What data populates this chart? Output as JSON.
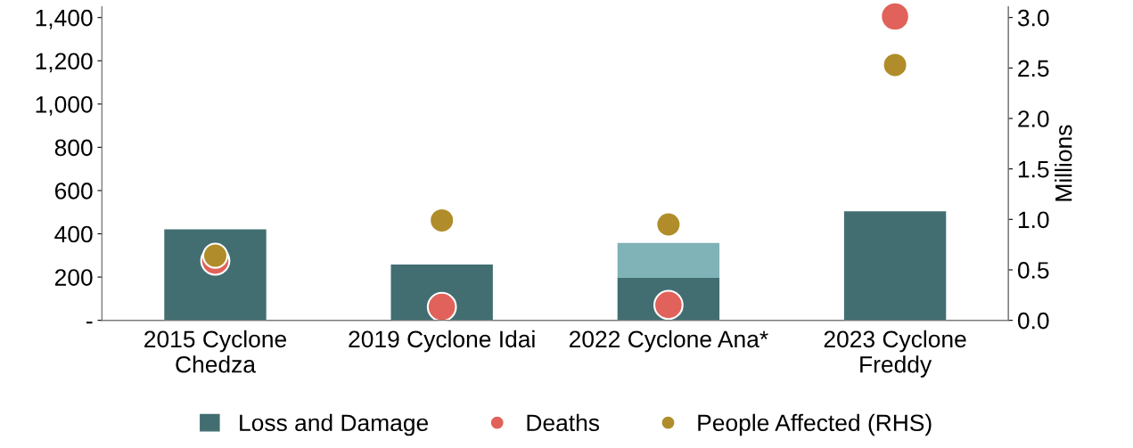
{
  "chart_data": {
    "type": "bar",
    "stacked": true,
    "categories": [
      "2015 Cyclone\nChedza",
      "2019 Cyclone Idai",
      "2022 Cyclone Ana*",
      "2023 Cyclone\nFreddy"
    ],
    "series": [
      {
        "name": "Loss and Damage",
        "color": "#426e72",
        "values": [
          421,
          258,
          196,
          504
        ]
      },
      {
        "color": "#80b3b7",
        "values": [
          null,
          null,
          162,
          null
        ]
      },
      {
        "name": "Deaths",
        "type": "scatter",
        "color": "#e0625a",
        "values": [
          276,
          62,
          71,
          1405
        ]
      },
      {
        "name": "People Affected (RHS)",
        "type": "scatter",
        "axis": "y2",
        "color": "#b08d2a",
        "values": [
          0.64,
          0.99,
          0.95,
          2.53
        ]
      }
    ],
    "ylim": [
      0,
      1450
    ],
    "yticks": [
      {
        "value": 0,
        "label": "-"
      },
      {
        "value": 200,
        "label": "200"
      },
      {
        "value": 400,
        "label": "400"
      },
      {
        "value": 600,
        "label": "600"
      },
      {
        "value": 800,
        "label": "800"
      },
      {
        "value": 1000,
        "label": "1,000"
      },
      {
        "value": 1200,
        "label": "1,200"
      },
      {
        "value": 1400,
        "label": "1,400"
      }
    ],
    "y2lim": [
      0,
      3.107
    ],
    "y2ticks": [
      {
        "value": 0,
        "label": "0.0"
      },
      {
        "value": 0.5,
        "label": "0.5"
      },
      {
        "value": 1,
        "label": "1.0"
      },
      {
        "value": 1.5,
        "label": "1.5"
      },
      {
        "value": 2,
        "label": "2.0"
      },
      {
        "value": 2.5,
        "label": "2.5"
      },
      {
        "value": 3,
        "label": "3.0"
      }
    ],
    "y2label": "Millions",
    "marker": "circle",
    "grid": false,
    "legend": "bottom"
  }
}
